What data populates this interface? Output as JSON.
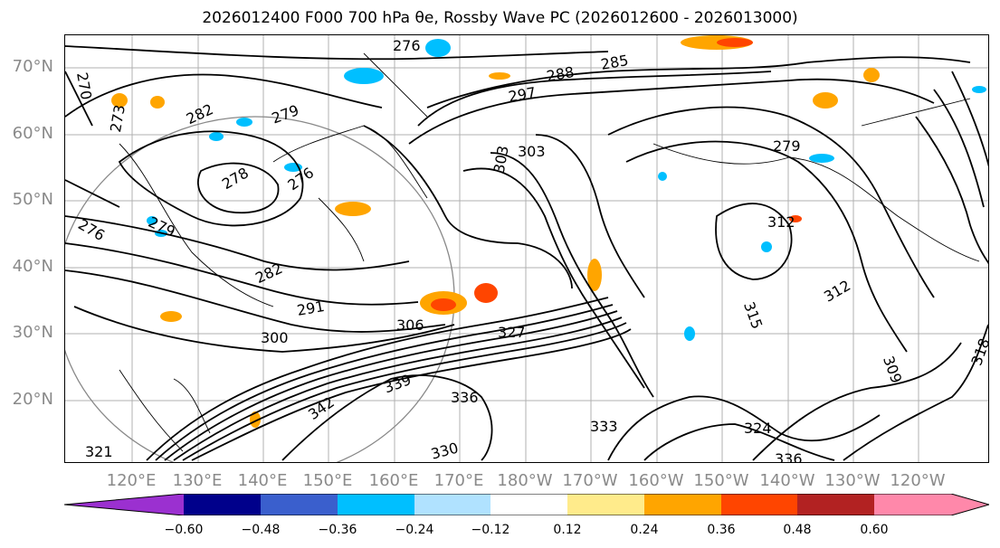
{
  "title": "2026012400 F000 700 hPa θe, Rossby Wave PC (2026012600 - 2026013000)",
  "lat_labels": [
    "70°N",
    "60°N",
    "50°N",
    "40°N",
    "30°N",
    "20°N"
  ],
  "lon_labels": [
    "120°E",
    "130°E",
    "140°E",
    "150°E",
    "160°E",
    "170°E",
    "180°W",
    "170°W",
    "160°W",
    "150°W",
    "140°W",
    "130°W",
    "120°W"
  ],
  "contour_labels": [
    "276",
    "270",
    "273",
    "282",
    "279",
    "278",
    "276",
    "279",
    "276",
    "282",
    "291",
    "300",
    "306",
    "303",
    "297",
    "288",
    "285",
    "279",
    "303",
    "312",
    "327",
    "336",
    "333",
    "342",
    "339",
    "330",
    "321",
    "318",
    "315",
    "324",
    "336",
    "309",
    "312"
  ],
  "colorbar": {
    "ticks": [
      "−0.60",
      "−0.48",
      "−0.36",
      "−0.24",
      "−0.12",
      "0.12",
      "0.24",
      "0.36",
      "0.48",
      "0.60"
    ],
    "colors": [
      "#9b30d0",
      "#00008b",
      "#3a5fcd",
      "#00bfff",
      "#b0e2ff",
      "#ffffff",
      "#ffeb8b",
      "#ffa500",
      "#ff4500",
      "#b22222",
      "#ff88aa",
      "#ff88aa"
    ]
  },
  "map": {
    "variable": "700 hPa θe",
    "shading": "Rossby Wave PC",
    "shading_positive_color": "#ffa500",
    "shading_negative_color": "#00bfff",
    "contour_color": "#000000",
    "coastline_color": "#000000",
    "gridline_color": "#b0b0b0"
  }
}
